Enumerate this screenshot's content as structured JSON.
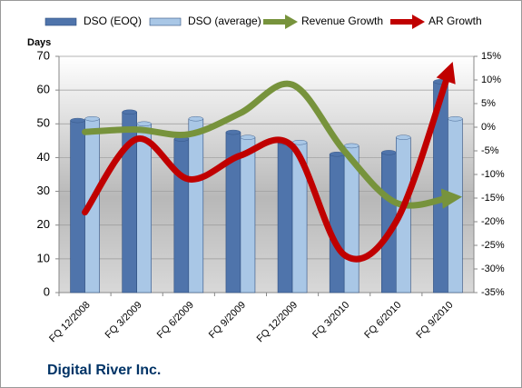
{
  "chart_data": {
    "type": "combo",
    "title": "Digital River Inc.",
    "y_label": "Days",
    "categories": [
      "FQ 12/2008",
      "FQ 3/2009",
      "FQ 6/2009",
      "FQ 9/2009",
      "FQ 12/2009",
      "FQ 3/2010",
      "FQ 6/2010",
      "FQ 9/2010"
    ],
    "series": [
      {
        "name": "DSO (EOQ)",
        "kind": "bar",
        "color": "#4f74ab",
        "values": [
          51,
          53.5,
          45.5,
          47.5,
          44.5,
          41,
          41.5,
          62.5
        ]
      },
      {
        "name": "DSO (average)",
        "kind": "bar",
        "color": "#a9c7e6",
        "values": [
          51.5,
          50,
          51.5,
          46,
          44.5,
          43.5,
          46,
          51.5
        ]
      },
      {
        "name": "Revenue Growth",
        "kind": "line",
        "axis": "y2",
        "color": "#77933c",
        "values": [
          -1,
          -0.5,
          -1.5,
          3,
          9,
          -5,
          -16,
          -15
        ]
      },
      {
        "name": "AR Growth",
        "kind": "line",
        "axis": "y2",
        "color": "#c00000",
        "values": [
          -18,
          -2.5,
          -11,
          -6,
          -4,
          -27,
          -20,
          11
        ]
      }
    ],
    "ylim": [
      0,
      70
    ],
    "yticks": [
      0,
      10,
      20,
      30,
      40,
      50,
      60,
      70
    ],
    "y2lim": [
      -35,
      15
    ],
    "y2ticks": [
      {
        "value": -35,
        "label": "-35%"
      },
      {
        "value": -30,
        "label": "-30%"
      },
      {
        "value": -25,
        "label": "-25%"
      },
      {
        "value": -20,
        "label": "-20%"
      },
      {
        "value": -15,
        "label": "-15%"
      },
      {
        "value": -10,
        "label": "-10%"
      },
      {
        "value": -5,
        "label": "-5%"
      },
      {
        "value": 0,
        "label": "0%"
      },
      {
        "value": 5,
        "label": "5%"
      },
      {
        "value": 10,
        "label": "10%"
      },
      {
        "value": 15,
        "label": "15%"
      }
    ],
    "grid": true,
    "legend": "top"
  }
}
